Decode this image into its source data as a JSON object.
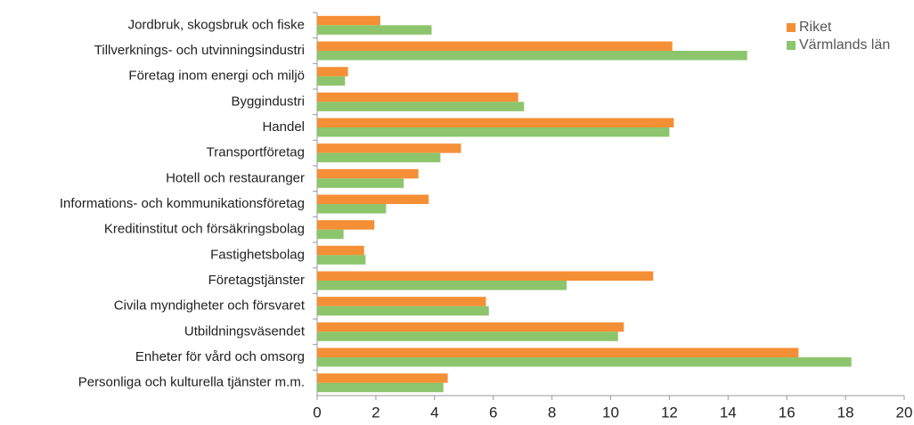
{
  "chart_data": {
    "type": "barh",
    "categories": [
      "Jordbruk, skogsbruk och fiske",
      "Tillverknings- och utvinningsindustri",
      "Företag inom energi och miljö",
      "Byggindustri",
      "Handel",
      "Transportföretag",
      "Hotell och restauranger",
      "Informations- och kommunikationsföretag",
      "Kreditinstitut och försäkringsbolag",
      "Fastighetsbolag",
      "Företagstjänster",
      "Civila myndigheter och försvaret",
      "Utbildningsväsendet",
      "Enheter för vård och omsorg",
      "Personliga och kulturella tjänster m.m."
    ],
    "series": [
      {
        "name": "Riket",
        "color": "#f58f35",
        "values": [
          2.15,
          12.1,
          1.05,
          6.85,
          12.15,
          4.9,
          3.45,
          3.8,
          1.95,
          1.6,
          11.45,
          5.75,
          10.45,
          16.4,
          4.45
        ]
      },
      {
        "name": "Värmlands län",
        "color": "#8cc56b",
        "values": [
          3.9,
          14.65,
          0.95,
          7.05,
          12.0,
          4.2,
          2.95,
          2.35,
          0.9,
          1.65,
          8.5,
          5.85,
          10.25,
          18.2,
          4.3
        ]
      }
    ],
    "xlim": [
      0,
      20
    ],
    "xticks": [
      0,
      2,
      4,
      6,
      8,
      10,
      12,
      14,
      16,
      18,
      20
    ],
    "legend": "top-right",
    "grid": false
  }
}
